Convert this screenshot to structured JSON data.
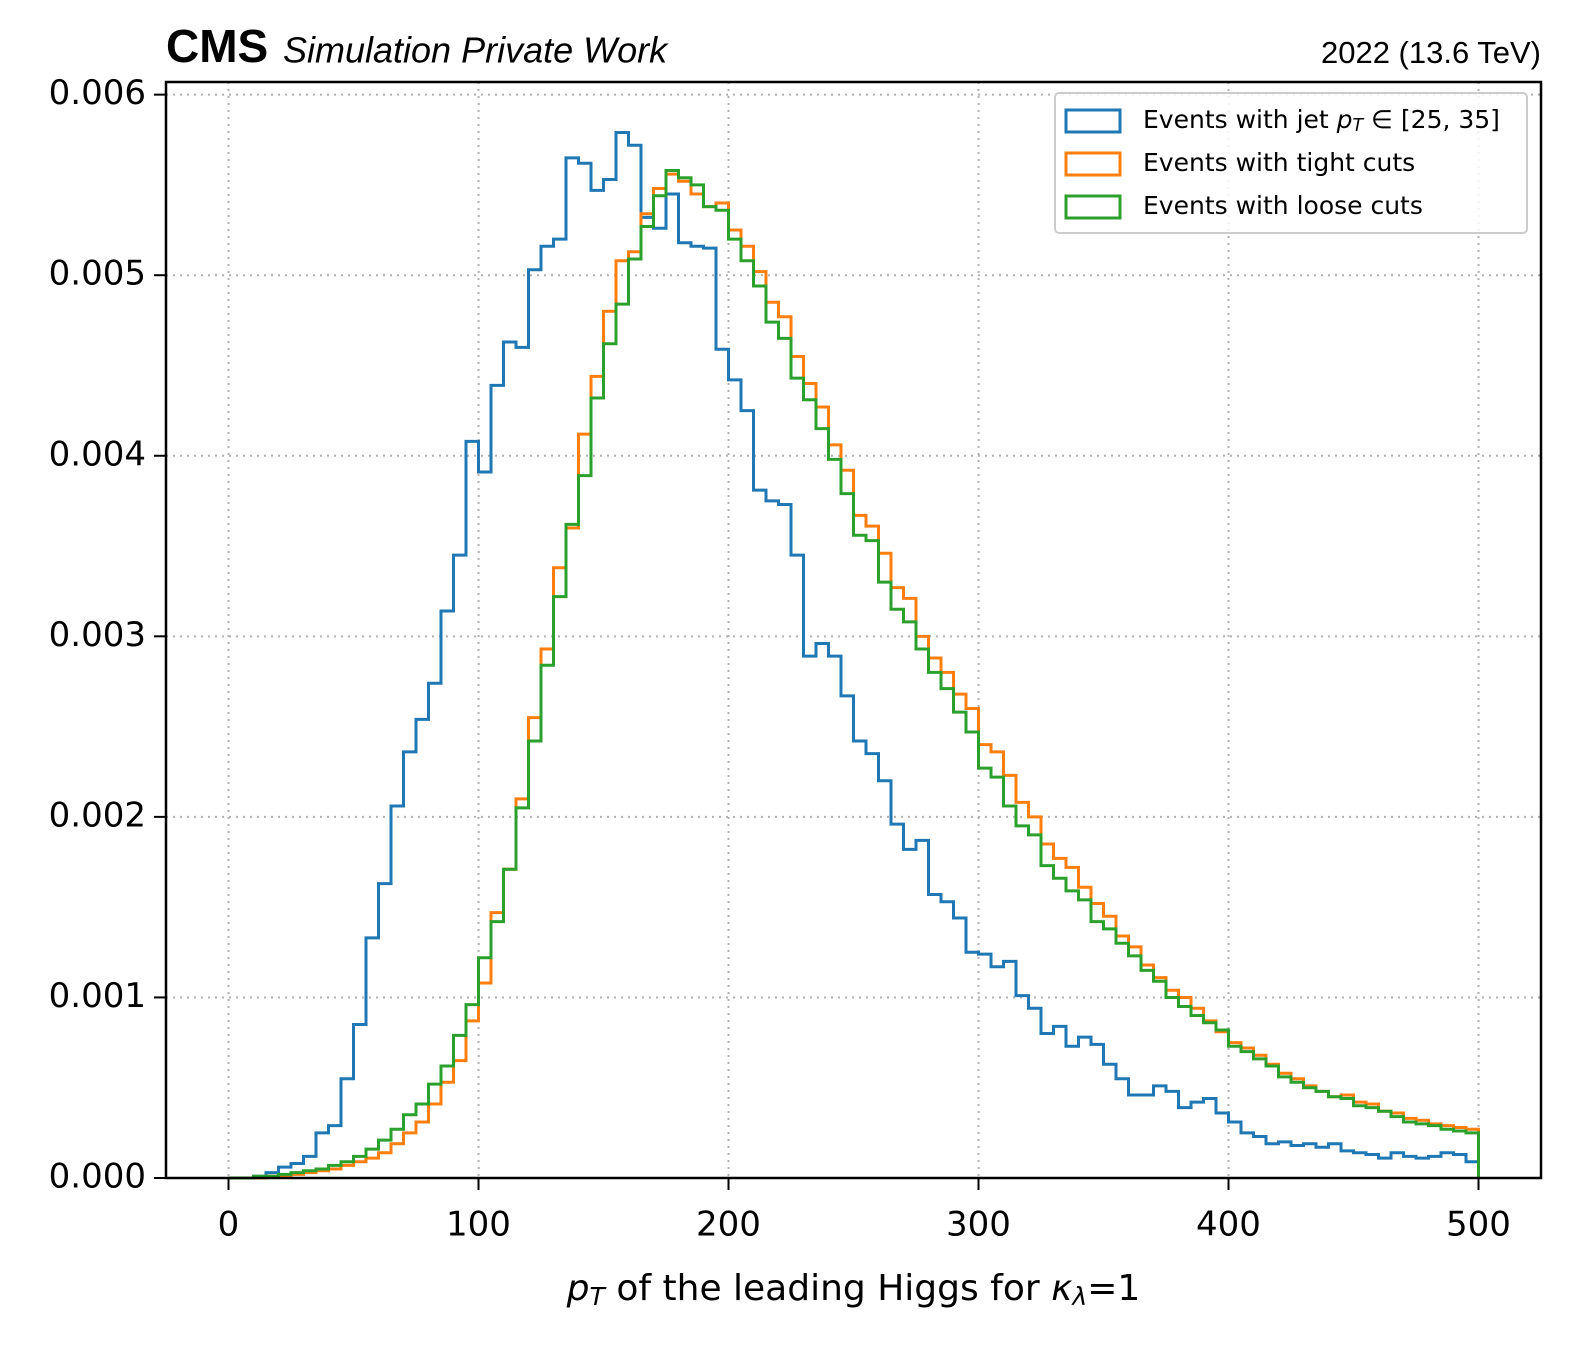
{
  "chart_data": {
    "type": "step_histogram",
    "header_left_bold": "CMS",
    "header_left_italic": "Simulation Private Work",
    "header_right": "2022 (13.6 TeV)",
    "xlabel": [
      [
        "p",
        "italic"
      ],
      [
        "T",
        "sub"
      ],
      [
        " of the leading Higgs for ",
        "normal"
      ],
      [
        "κ",
        "italic"
      ],
      [
        "λ",
        "sub"
      ],
      [
        "=1",
        "normal"
      ]
    ],
    "xlim": [
      -25,
      525
    ],
    "ylim": [
      0,
      0.00607
    ],
    "xticks": [
      0,
      100,
      200,
      300,
      400,
      500
    ],
    "yticks": [
      {
        "value": 0,
        "label": "0.000"
      },
      {
        "value": 0.001,
        "label": "0.001"
      },
      {
        "value": 0.002,
        "label": "0.002"
      },
      {
        "value": 0.003,
        "label": "0.003"
      },
      {
        "value": 0.004,
        "label": "0.004"
      },
      {
        "value": 0.005,
        "label": "0.005"
      },
      {
        "value": 0.006,
        "label": "0.006"
      }
    ],
    "grid": true,
    "legend_loc": "upper right",
    "bins": [
      0,
      5,
      10,
      15,
      20,
      25,
      30,
      35,
      40,
      45,
      50,
      55,
      60,
      65,
      70,
      75,
      80,
      85,
      90,
      95,
      100,
      105,
      110,
      115,
      120,
      125,
      130,
      135,
      140,
      145,
      150,
      155,
      160,
      165,
      170,
      175,
      180,
      185,
      190,
      195,
      200,
      205,
      210,
      215,
      220,
      225,
      230,
      235,
      240,
      245,
      250,
      255,
      260,
      265,
      270,
      275,
      280,
      285,
      290,
      295,
      300,
      305,
      310,
      315,
      320,
      325,
      330,
      335,
      340,
      345,
      350,
      355,
      360,
      365,
      370,
      375,
      380,
      385,
      390,
      395,
      400,
      405,
      410,
      415,
      420,
      425,
      430,
      435,
      440,
      445,
      450,
      455,
      460,
      465,
      470,
      475,
      480,
      485,
      490,
      495,
      500
    ],
    "series": [
      {
        "name": [
          [
            "Events with jet ",
            "normal"
          ],
          [
            "p",
            "italic"
          ],
          [
            "T",
            "sub"
          ],
          [
            " ∈ [25, 35]",
            "normal"
          ]
        ],
        "color": "#1f77b4",
        "values": [
          0,
          0,
          1e-05,
          3e-05,
          6e-05,
          8e-05,
          0.00012,
          0.00025,
          0.00029,
          0.00055,
          0.00085,
          0.00133,
          0.00163,
          0.00206,
          0.00236,
          0.00254,
          0.00274,
          0.00314,
          0.00345,
          0.00408,
          0.00391,
          0.00439,
          0.00463,
          0.0046,
          0.00503,
          0.00516,
          0.0052,
          0.00565,
          0.00562,
          0.00547,
          0.00553,
          0.00579,
          0.00572,
          0.00532,
          0.00526,
          0.00545,
          0.00518,
          0.00516,
          0.00515,
          0.00459,
          0.00442,
          0.00425,
          0.00381,
          0.00375,
          0.00373,
          0.00345,
          0.00289,
          0.00296,
          0.00289,
          0.00267,
          0.00242,
          0.00235,
          0.0022,
          0.00196,
          0.00182,
          0.00187,
          0.00157,
          0.00153,
          0.00144,
          0.00125,
          0.00124,
          0.00117,
          0.0012,
          0.00101,
          0.00094,
          0.0008,
          0.00084,
          0.00073,
          0.00078,
          0.00074,
          0.00063,
          0.00055,
          0.00046,
          0.00046,
          0.00051,
          0.00048,
          0.00039,
          0.00042,
          0.00044,
          0.00036,
          0.00031,
          0.00025,
          0.00023,
          0.00019,
          0.0002,
          0.00018,
          0.00019,
          0.00017,
          0.00019,
          0.00015,
          0.00014,
          0.00013,
          0.00011,
          0.00014,
          0.00012,
          0.00011,
          0.00012,
          0.00014,
          0.00013,
          9e-05
        ]
      },
      {
        "name": [
          [
            "Events with tight cuts",
            "normal"
          ]
        ],
        "color": "#ff7f0e",
        "values": [
          0,
          0,
          0,
          1e-05,
          1e-05,
          2e-05,
          3e-05,
          4e-05,
          5e-05,
          7e-05,
          9e-05,
          0.00011,
          0.00014,
          0.00019,
          0.00025,
          0.00031,
          0.00041,
          0.00053,
          0.00065,
          0.00087,
          0.00108,
          0.00147,
          0.00171,
          0.0021,
          0.00255,
          0.00293,
          0.00338,
          0.0036,
          0.00412,
          0.00444,
          0.0048,
          0.00508,
          0.00513,
          0.00534,
          0.00548,
          0.00556,
          0.00552,
          0.00545,
          0.00538,
          0.0054,
          0.00525,
          0.00516,
          0.00502,
          0.00485,
          0.00477,
          0.00455,
          0.0044,
          0.00427,
          0.00406,
          0.00392,
          0.00367,
          0.00361,
          0.00346,
          0.00327,
          0.00321,
          0.003,
          0.00288,
          0.0028,
          0.00268,
          0.0026,
          0.0024,
          0.00236,
          0.00223,
          0.00208,
          0.002,
          0.00185,
          0.00177,
          0.00172,
          0.00161,
          0.00152,
          0.00145,
          0.00134,
          0.00128,
          0.00118,
          0.00111,
          0.00104,
          0.001,
          0.00094,
          0.00087,
          0.00081,
          0.00075,
          0.00072,
          0.00068,
          0.00063,
          0.00058,
          0.00055,
          0.00051,
          0.00048,
          0.00045,
          0.00046,
          0.00042,
          0.00041,
          0.00037,
          0.00036,
          0.00033,
          0.00032,
          0.0003,
          0.00029,
          0.00028,
          0.00027
        ]
      },
      {
        "name": [
          [
            "Events with loose cuts",
            "normal"
          ]
        ],
        "color": "#2ca02c",
        "values": [
          0,
          0,
          1e-05,
          1e-05,
          2e-05,
          3e-05,
          4e-05,
          5e-05,
          7e-05,
          9e-05,
          0.00012,
          0.00016,
          0.00021,
          0.00027,
          0.00035,
          0.00041,
          0.00052,
          0.00062,
          0.00079,
          0.00096,
          0.00122,
          0.00142,
          0.00171,
          0.00205,
          0.00242,
          0.00284,
          0.00322,
          0.00362,
          0.00389,
          0.00432,
          0.00462,
          0.00484,
          0.00509,
          0.00527,
          0.00544,
          0.00558,
          0.00554,
          0.0055,
          0.00538,
          0.00536,
          0.0052,
          0.00508,
          0.00494,
          0.00474,
          0.00465,
          0.00443,
          0.00431,
          0.00415,
          0.00398,
          0.00379,
          0.00356,
          0.00353,
          0.0033,
          0.00315,
          0.00308,
          0.00293,
          0.0028,
          0.00271,
          0.00258,
          0.00247,
          0.00227,
          0.00222,
          0.00206,
          0.00195,
          0.0019,
          0.00173,
          0.00166,
          0.00159,
          0.00154,
          0.00142,
          0.00138,
          0.0013,
          0.00123,
          0.00115,
          0.00109,
          0.001,
          0.00095,
          0.0009,
          0.00086,
          0.00082,
          0.00073,
          0.0007,
          0.00066,
          0.00062,
          0.00056,
          0.00053,
          0.0005,
          0.00048,
          0.00045,
          0.00044,
          0.0004,
          0.00039,
          0.00037,
          0.00034,
          0.00031,
          0.0003,
          0.00029,
          0.00027,
          0.00026,
          0.00025
        ]
      }
    ]
  }
}
